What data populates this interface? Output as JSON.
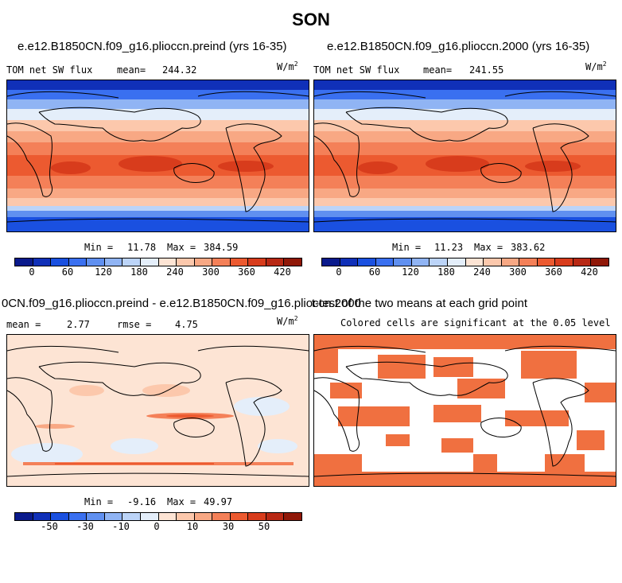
{
  "title": "SON",
  "panels": {
    "top_left": {
      "case_title": "e.e12.B1850CN.f09_g16.plioccn.preind (yrs 16-35)",
      "field": "TOM net SW flux",
      "mean_label": "mean=",
      "mean_value": "244.32",
      "units": "W/m",
      "units_exp": "2",
      "min_label": "Min =",
      "min_value": "11.78",
      "max_label": "Max =",
      "max_value": "384.59"
    },
    "top_right": {
      "case_title": "e.e12.B1850CN.f09_g16.plioccn.2000 (yrs 16-35)",
      "field": "TOM net SW flux",
      "mean_label": "mean=",
      "mean_value": "241.55",
      "units": "W/m",
      "units_exp": "2",
      "min_label": "Min =",
      "min_value": "11.23",
      "max_label": "Max =",
      "max_value": "383.62"
    },
    "bottom_left": {
      "case_title": "0CN.f09_g16.plioccn.preind - e.e12.B1850CN.f09_g16.plioccn.2000",
      "mean_label": "mean =",
      "mean_value": "2.77",
      "rmse_label": "rmse =",
      "rmse_value": "4.75",
      "units": "W/m",
      "units_exp": "2",
      "min_label": "Min =",
      "min_value": "-9.16",
      "max_label": "Max =",
      "max_value": "49.97"
    },
    "bottom_right": {
      "case_title": "t-test of the two means at each grid point",
      "subtitle": "Colored cells are significant at the 0.05 level",
      "sig_color": "#f07040"
    }
  },
  "colorbars": {
    "flux": {
      "colors": [
        "#0a1a8c",
        "#1030b8",
        "#1a50e0",
        "#3a70f0",
        "#6090f0",
        "#90b4f4",
        "#bcd4f8",
        "#e4eefa",
        "#fde4d4",
        "#fcc8ac",
        "#f8a884",
        "#f48058",
        "#ec5a30",
        "#d83c1c",
        "#b82814",
        "#901808"
      ],
      "labels": [
        "0",
        "60",
        "120",
        "180",
        "240",
        "300",
        "360",
        "420"
      ]
    },
    "diff": {
      "colors": [
        "#0a1a8c",
        "#1030b8",
        "#1a50e0",
        "#3a70f0",
        "#6090f0",
        "#90b4f4",
        "#bcd4f8",
        "#e4eefa",
        "#fde4d4",
        "#fcc8ac",
        "#f8a884",
        "#f48058",
        "#ec5a30",
        "#d83c1c",
        "#b82814",
        "#901808"
      ],
      "labels": [
        "-50",
        "-30",
        "-10",
        "0",
        "10",
        "30",
        "50"
      ]
    }
  }
}
